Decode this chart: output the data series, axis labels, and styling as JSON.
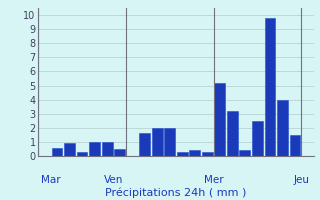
{
  "bar_values": [
    0.0,
    0.6,
    0.9,
    0.3,
    1.0,
    1.0,
    0.5,
    0.0,
    1.6,
    2.0,
    2.0,
    0.3,
    0.4,
    0.3,
    5.2,
    3.2,
    0.4,
    2.5,
    9.8,
    4.0,
    1.5,
    0.0
  ],
  "n_bars": 22,
  "day_labels": [
    "Mar",
    "Ven",
    "Mer",
    "Jeu"
  ],
  "day_positions": [
    0.5,
    5.5,
    13.5,
    20.5
  ],
  "day_lines": [
    0,
    7,
    14,
    21
  ],
  "ylabel_ticks": [
    0,
    1,
    2,
    3,
    4,
    5,
    6,
    7,
    8,
    9,
    10
  ],
  "xlabel": "Précipitations 24h ( mm )",
  "ylim": [
    0,
    10.5
  ],
  "bar_color": "#1a3aba",
  "bar_edge_color": "#2050d0",
  "bg_color": "#d8f5f5",
  "grid_color": "#b0cccc",
  "axis_line_color": "#707080",
  "text_color": "#1a3aba",
  "tick_color": "#404060",
  "xlabel_fontsize": 8,
  "tick_fontsize": 7,
  "day_label_fontsize": 7.5
}
